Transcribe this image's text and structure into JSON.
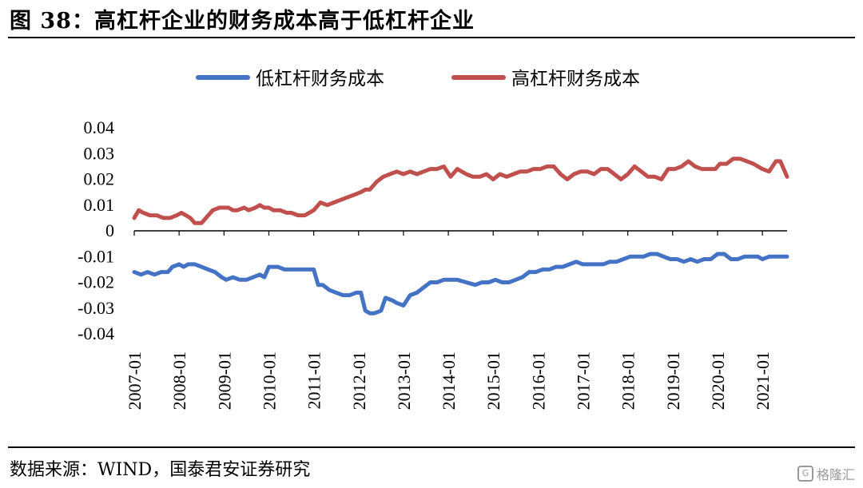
{
  "header": {
    "title": "图 38：高杠杆企业的财务成本高于低杠杆企业"
  },
  "footer": {
    "source": "数据来源：WIND，国泰君安证券研究",
    "watermark": "格隆汇"
  },
  "chart_data": {
    "type": "line",
    "title": "",
    "xlabel": "",
    "ylabel": "",
    "ylim": [
      -0.04,
      0.04
    ],
    "yticks": [
      0.04,
      0.03,
      0.02,
      0.01,
      0,
      -0.01,
      -0.02,
      -0.03,
      -0.04
    ],
    "ytick_labels": [
      "0.04",
      "0.03",
      "0.02",
      "0.01",
      "0",
      "-0.01",
      "-0.02",
      "-0.03",
      "-0.04"
    ],
    "xticks": [
      "2007-01",
      "2008-01",
      "2009-01",
      "2010-01",
      "2011-01",
      "2012-01",
      "2013-01",
      "2014-01",
      "2015-01",
      "2016-01",
      "2017-01",
      "2018-01",
      "2019-01",
      "2020-01",
      "2021-01"
    ],
    "xlim": [
      2007.0,
      2021.55
    ],
    "grid": false,
    "legend": "top",
    "series": [
      {
        "name": "低杠杆财务成本",
        "color": "#4472c4",
        "x": [
          2007.0,
          2007.15,
          2007.3,
          2007.45,
          2007.6,
          2007.75,
          2007.85,
          2008.0,
          2008.1,
          2008.2,
          2008.35,
          2008.5,
          2008.65,
          2008.8,
          2008.95,
          2009.05,
          2009.2,
          2009.35,
          2009.5,
          2009.65,
          2009.8,
          2009.9,
          2010.0,
          2010.1,
          2010.2,
          2010.35,
          2010.5,
          2010.7,
          2010.85,
          2011.0,
          2011.1,
          2011.2,
          2011.35,
          2011.5,
          2011.65,
          2011.8,
          2011.95,
          2012.05,
          2012.15,
          2012.25,
          2012.35,
          2012.5,
          2012.6,
          2012.75,
          2012.85,
          2013.0,
          2013.15,
          2013.3,
          2013.45,
          2013.6,
          2013.75,
          2013.9,
          2014.05,
          2014.2,
          2014.4,
          2014.6,
          2014.75,
          2014.9,
          2015.05,
          2015.2,
          2015.35,
          2015.5,
          2015.65,
          2015.8,
          2015.95,
          2016.1,
          2016.25,
          2016.4,
          2016.55,
          2016.7,
          2016.85,
          2017.0,
          2017.15,
          2017.3,
          2017.45,
          2017.6,
          2017.75,
          2017.9,
          2018.05,
          2018.2,
          2018.35,
          2018.5,
          2018.65,
          2018.8,
          2018.95,
          2019.1,
          2019.25,
          2019.4,
          2019.55,
          2019.7,
          2019.85,
          2020.0,
          2020.15,
          2020.3,
          2020.45,
          2020.6,
          2020.75,
          2020.9,
          2021.0,
          2021.15,
          2021.3,
          2021.45,
          2021.55
        ],
        "values": [
          -0.016,
          -0.017,
          -0.016,
          -0.017,
          -0.016,
          -0.016,
          -0.014,
          -0.013,
          -0.014,
          -0.013,
          -0.013,
          -0.014,
          -0.015,
          -0.016,
          -0.018,
          -0.019,
          -0.018,
          -0.019,
          -0.019,
          -0.018,
          -0.017,
          -0.018,
          -0.014,
          -0.014,
          -0.014,
          -0.015,
          -0.015,
          -0.015,
          -0.015,
          -0.015,
          -0.021,
          -0.021,
          -0.023,
          -0.024,
          -0.025,
          -0.025,
          -0.024,
          -0.024,
          -0.031,
          -0.032,
          -0.032,
          -0.031,
          -0.026,
          -0.027,
          -0.028,
          -0.029,
          -0.025,
          -0.024,
          -0.022,
          -0.02,
          -0.02,
          -0.019,
          -0.019,
          -0.019,
          -0.02,
          -0.021,
          -0.02,
          -0.02,
          -0.019,
          -0.02,
          -0.02,
          -0.019,
          -0.018,
          -0.016,
          -0.016,
          -0.015,
          -0.015,
          -0.014,
          -0.014,
          -0.013,
          -0.012,
          -0.013,
          -0.013,
          -0.013,
          -0.013,
          -0.012,
          -0.012,
          -0.011,
          -0.01,
          -0.01,
          -0.01,
          -0.009,
          -0.009,
          -0.01,
          -0.011,
          -0.011,
          -0.012,
          -0.011,
          -0.012,
          -0.011,
          -0.011,
          -0.009,
          -0.009,
          -0.011,
          -0.011,
          -0.01,
          -0.01,
          -0.01,
          -0.011,
          -0.01,
          -0.01,
          -0.01,
          -0.01
        ]
      },
      {
        "name": "高杠杆财务成本",
        "color": "#c0504d",
        "x": [
          2007.0,
          2007.1,
          2007.2,
          2007.35,
          2007.5,
          2007.65,
          2007.8,
          2007.95,
          2008.05,
          2008.15,
          2008.25,
          2008.35,
          2008.5,
          2008.65,
          2008.75,
          2008.9,
          2009.0,
          2009.1,
          2009.2,
          2009.3,
          2009.45,
          2009.55,
          2009.7,
          2009.8,
          2009.9,
          2010.0,
          2010.1,
          2010.25,
          2010.4,
          2010.5,
          2010.65,
          2010.8,
          2010.9,
          2011.0,
          2011.15,
          2011.3,
          2011.45,
          2011.6,
          2011.75,
          2011.9,
          2012.05,
          2012.15,
          2012.25,
          2012.4,
          2012.55,
          2012.7,
          2012.85,
          2013.0,
          2013.15,
          2013.3,
          2013.45,
          2013.6,
          2013.75,
          2013.9,
          2014.05,
          2014.2,
          2014.4,
          2014.55,
          2014.7,
          2014.85,
          2015.0,
          2015.15,
          2015.3,
          2015.45,
          2015.6,
          2015.75,
          2015.9,
          2016.05,
          2016.2,
          2016.35,
          2016.5,
          2016.65,
          2016.8,
          2016.95,
          2017.1,
          2017.25,
          2017.4,
          2017.55,
          2017.7,
          2017.85,
          2018.0,
          2018.15,
          2018.3,
          2018.45,
          2018.6,
          2018.75,
          2018.9,
          2019.05,
          2019.2,
          2019.35,
          2019.5,
          2019.65,
          2019.8,
          2019.95,
          2020.05,
          2020.2,
          2020.35,
          2020.5,
          2020.65,
          2020.8,
          2020.9,
          2021.0,
          2021.15,
          2021.3,
          2021.4,
          2021.55
        ],
        "values": [
          0.005,
          0.008,
          0.007,
          0.006,
          0.006,
          0.005,
          0.005,
          0.006,
          0.007,
          0.006,
          0.005,
          0.003,
          0.003,
          0.006,
          0.008,
          0.009,
          0.009,
          0.009,
          0.008,
          0.008,
          0.009,
          0.008,
          0.009,
          0.01,
          0.009,
          0.009,
          0.008,
          0.008,
          0.007,
          0.007,
          0.006,
          0.006,
          0.007,
          0.008,
          0.011,
          0.01,
          0.011,
          0.012,
          0.013,
          0.014,
          0.015,
          0.016,
          0.016,
          0.019,
          0.021,
          0.022,
          0.023,
          0.022,
          0.023,
          0.022,
          0.023,
          0.024,
          0.024,
          0.025,
          0.021,
          0.024,
          0.022,
          0.021,
          0.021,
          0.022,
          0.02,
          0.022,
          0.021,
          0.022,
          0.023,
          0.023,
          0.024,
          0.024,
          0.025,
          0.025,
          0.022,
          0.02,
          0.022,
          0.023,
          0.023,
          0.022,
          0.024,
          0.024,
          0.022,
          0.02,
          0.022,
          0.025,
          0.023,
          0.021,
          0.021,
          0.02,
          0.024,
          0.024,
          0.025,
          0.027,
          0.025,
          0.024,
          0.024,
          0.024,
          0.026,
          0.026,
          0.028,
          0.028,
          0.027,
          0.026,
          0.025,
          0.024,
          0.023,
          0.027,
          0.027,
          0.021
        ]
      }
    ]
  }
}
